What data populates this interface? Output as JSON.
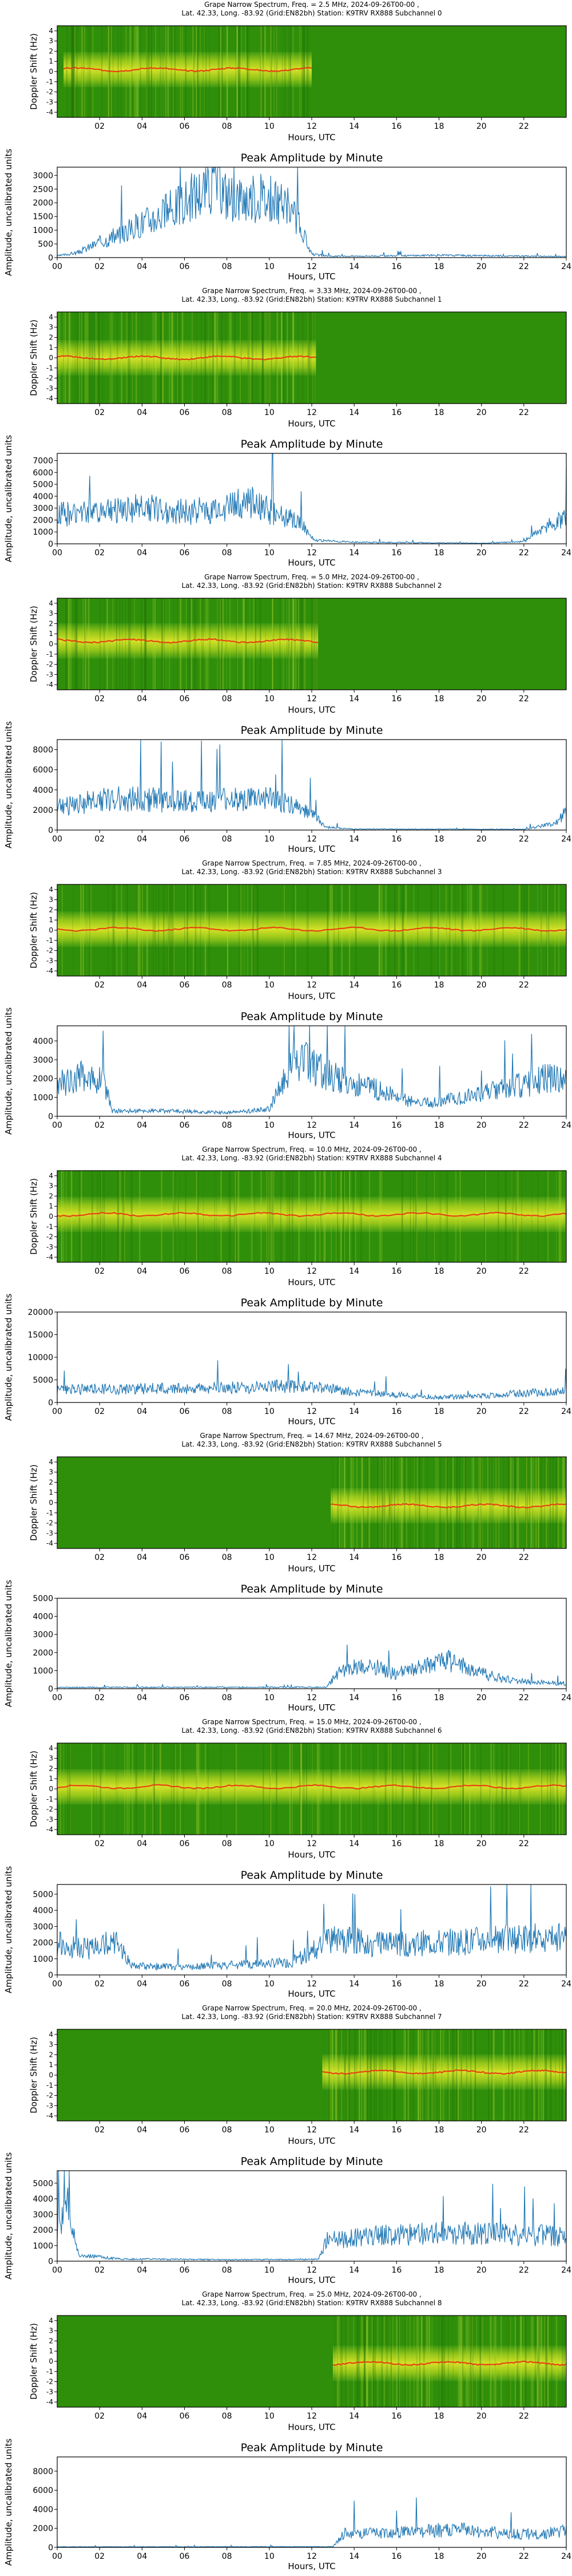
{
  "colors": {
    "spectrum_bg": "#2f8f0a",
    "spectrum_band": "#e9e92a",
    "spectrum_line": "#e8340f",
    "amp_line": "#1f77b4"
  },
  "common": {
    "doppler_ylabel": "Doppler Shift (Hz)",
    "xlabel": "Hours, UTC",
    "amp_title": "Peak Amplitude by Minute",
    "amp_ylabel": "Amplitude, uncalibrated units",
    "spectrum_yticks": [
      "4",
      "3",
      "2",
      "1",
      "0",
      "-1",
      "-2",
      "-3",
      "-4"
    ],
    "spectrum_xticks": [
      "02",
      "04",
      "06",
      "08",
      "10",
      "12",
      "14",
      "16",
      "18",
      "20",
      "22"
    ],
    "amp_xticks": [
      "00",
      "02",
      "04",
      "06",
      "08",
      "10",
      "12",
      "14",
      "16",
      "18",
      "20",
      "22",
      "24"
    ]
  },
  "chart_data": [
    {
      "type": "heatmap",
      "title_line1": "Grape Narrow Spectrum, Freq. = 2.5 MHz, 2024-09-26T00-00 ,",
      "title_line2": "Lat.  42.33, Long. -83.92 (Grid:EN82bh) Station: K9TRV RX888 Subchannel 0",
      "active_hours": [
        0.3,
        12.0
      ],
      "line_offset_hz": 0.2
    },
    {
      "type": "line",
      "ylim": [
        0,
        3300
      ],
      "yticks": [
        0,
        500,
        1000,
        1500,
        2000,
        2500,
        3000
      ],
      "ytick_labels": [
        "0",
        "500",
        "1000",
        "1500",
        "2000",
        "2500",
        "3000"
      ],
      "envelope": [
        [
          0,
          60
        ],
        [
          1,
          200
        ],
        [
          2,
          600
        ],
        [
          3,
          900
        ],
        [
          4,
          1350
        ],
        [
          5,
          1700
        ],
        [
          6,
          2150
        ],
        [
          7,
          2700
        ],
        [
          7.5,
          3050
        ],
        [
          8,
          2400
        ],
        [
          9,
          2300
        ],
        [
          10,
          2250
        ],
        [
          11,
          1900
        ],
        [
          11.5,
          1100
        ],
        [
          12,
          120
        ],
        [
          13,
          50
        ],
        [
          18,
          90
        ],
        [
          24,
          40
        ]
      ]
    },
    {
      "type": "heatmap",
      "title_line1": "Grape Narrow Spectrum, Freq. = 3.33 MHz, 2024-09-26T00-00 ,",
      "title_line2": "Lat.  42.33, Long. -83.92 (Grid:EN82bh) Station: K9TRV RX888 Subchannel 1",
      "active_hours": [
        0.0,
        12.2
      ],
      "line_offset_hz": 0.0
    },
    {
      "type": "line",
      "ylim": [
        0,
        7600
      ],
      "yticks": [
        0,
        1000,
        2000,
        3000,
        4000,
        5000,
        6000,
        7000
      ],
      "ytick_labels": [
        "0",
        "1000",
        "2000",
        "3000",
        "4000",
        "5000",
        "6000",
        "7000"
      ],
      "envelope": [
        [
          0,
          2600
        ],
        [
          2,
          2800
        ],
        [
          4,
          3200
        ],
        [
          6,
          2800
        ],
        [
          8,
          3100
        ],
        [
          9,
          3900
        ],
        [
          10,
          2900
        ],
        [
          11,
          2300
        ],
        [
          11.7,
          1300
        ],
        [
          12.2,
          300
        ],
        [
          14,
          150
        ],
        [
          20,
          50
        ],
        [
          22,
          200
        ],
        [
          23,
          1500
        ],
        [
          24,
          2200
        ]
      ]
    },
    {
      "type": "heatmap",
      "title_line1": "Grape Narrow Spectrum, Freq. = 5.0 MHz, 2024-09-26T00-00 ,",
      "title_line2": "Lat.  42.33, Long. -83.92 (Grid:EN82bh) Station: K9TRV RX888 Subchannel 2",
      "active_hours": [
        0.0,
        12.3
      ],
      "line_offset_hz": 0.3
    },
    {
      "type": "line",
      "ylim": [
        0,
        9000
      ],
      "yticks": [
        0,
        2000,
        4000,
        6000,
        8000
      ],
      "ytick_labels": [
        "0",
        "2000",
        "4000",
        "6000",
        "8000"
      ],
      "envelope": [
        [
          0,
          2400
        ],
        [
          2,
          3200
        ],
        [
          4,
          3300
        ],
        [
          6,
          3000
        ],
        [
          8,
          3100
        ],
        [
          10,
          3200
        ],
        [
          11,
          2600
        ],
        [
          12,
          1800
        ],
        [
          12.7,
          300
        ],
        [
          14,
          100
        ],
        [
          22,
          80
        ],
        [
          23.5,
          700
        ],
        [
          24,
          1900
        ]
      ]
    },
    {
      "type": "heatmap",
      "title_line1": "Grape Narrow Spectrum, Freq. = 7.85 MHz, 2024-09-26T00-00 ,",
      "title_line2": "Lat.  42.33, Long. -83.92 (Grid:EN82bh) Station: K9TRV RX888 Subchannel 3",
      "active_hours": [
        0.0,
        24.0
      ],
      "line_offset_hz": 0.1
    },
    {
      "type": "line",
      "ylim": [
        0,
        4800
      ],
      "yticks": [
        0,
        1000,
        2000,
        3000,
        4000
      ],
      "ytick_labels": [
        "0",
        "1000",
        "2000",
        "3000",
        "4000"
      ],
      "envelope": [
        [
          0,
          1800
        ],
        [
          1.5,
          2300
        ],
        [
          2.2,
          1900
        ],
        [
          2.6,
          300
        ],
        [
          5,
          300
        ],
        [
          8,
          200
        ],
        [
          10,
          400
        ],
        [
          11,
          2800
        ],
        [
          12,
          3000
        ],
        [
          13,
          2200
        ],
        [
          15,
          1500
        ],
        [
          17,
          700
        ],
        [
          19,
          1000
        ],
        [
          21,
          1500
        ],
        [
          23,
          2100
        ],
        [
          24,
          2000
        ]
      ]
    },
    {
      "type": "heatmap",
      "title_line1": "Grape Narrow Spectrum, Freq. = 10.0 MHz, 2024-09-26T00-00 ,",
      "title_line2": "Lat.  42.33, Long. -83.92 (Grid:EN82bh) Station: K9TRV RX888 Subchannel 4",
      "active_hours": [
        0.0,
        24.0
      ],
      "line_offset_hz": 0.2
    },
    {
      "type": "line",
      "ylim": [
        0,
        20000
      ],
      "yticks": [
        0,
        5000,
        10000,
        15000,
        20000
      ],
      "ytick_labels": [
        "0",
        "5000",
        "10000",
        "15000",
        "20000"
      ],
      "envelope": [
        [
          0,
          3000
        ],
        [
          4,
          3200
        ],
        [
          8,
          3400
        ],
        [
          10,
          3800
        ],
        [
          12,
          3600
        ],
        [
          14,
          2400
        ],
        [
          16,
          1800
        ],
        [
          18,
          1200
        ],
        [
          20,
          1500
        ],
        [
          22,
          2200
        ],
        [
          24,
          2600
        ]
      ]
    },
    {
      "type": "heatmap",
      "title_line1": "Grape Narrow Spectrum, Freq. = 14.67 MHz, 2024-09-26T00-00 ,",
      "title_line2": "Lat.  42.33, Long. -83.92 (Grid:EN82bh) Station: K9TRV RX888 Subchannel 5",
      "active_hours": [
        12.9,
        24.0
      ],
      "line_offset_hz": -0.3
    },
    {
      "type": "line",
      "ylim": [
        0,
        5000
      ],
      "yticks": [
        0,
        1000,
        2000,
        3000,
        4000,
        5000
      ],
      "ytick_labels": [
        "0",
        "1000",
        "2000",
        "3000",
        "4000",
        "5000"
      ],
      "envelope": [
        [
          0,
          80
        ],
        [
          12.7,
          90
        ],
        [
          13.2,
          900
        ],
        [
          14.5,
          1400
        ],
        [
          16,
          900
        ],
        [
          17,
          1200
        ],
        [
          18.5,
          1600
        ],
        [
          20,
          900
        ],
        [
          21,
          600
        ],
        [
          22,
          400
        ],
        [
          24,
          300
        ]
      ]
    },
    {
      "type": "heatmap",
      "title_line1": "Grape Narrow Spectrum, Freq. = 15.0 MHz, 2024-09-26T00-00 ,",
      "title_line2": "Lat.  42.33, Long. -83.92 (Grid:EN82bh) Station: K9TRV RX888 Subchannel 6",
      "active_hours": [
        0.0,
        24.0
      ],
      "line_offset_hz": 0.2
    },
    {
      "type": "line",
      "ylim": [
        0,
        5600
      ],
      "yticks": [
        0,
        1000,
        2000,
        3000,
        4000,
        5000
      ],
      "ytick_labels": [
        "0",
        "1000",
        "2000",
        "3000",
        "4000",
        "5000"
      ],
      "envelope": [
        [
          0,
          2000
        ],
        [
          1.5,
          1700
        ],
        [
          2.8,
          2200
        ],
        [
          3.5,
          600
        ],
        [
          6,
          500
        ],
        [
          9,
          700
        ],
        [
          11,
          800
        ],
        [
          12,
          1500
        ],
        [
          13,
          2400
        ],
        [
          15,
          2000
        ],
        [
          18,
          2100
        ],
        [
          21,
          2300
        ],
        [
          24,
          2500
        ]
      ]
    },
    {
      "type": "heatmap",
      "title_line1": "Grape Narrow Spectrum, Freq. = 20.0 MHz, 2024-09-26T00-00 ,",
      "title_line2": "Lat.  42.33, Long. -83.92 (Grid:EN82bh) Station: K9TRV RX888 Subchannel 7",
      "active_hours": [
        12.5,
        24.0
      ],
      "line_offset_hz": 0.3
    },
    {
      "type": "line",
      "ylim": [
        0,
        5800
      ],
      "yticks": [
        0,
        1000,
        2000,
        3000,
        4000,
        5000
      ],
      "ytick_labels": [
        "0",
        "1000",
        "2000",
        "3000",
        "4000",
        "5000"
      ],
      "envelope": [
        [
          0,
          2500
        ],
        [
          0.5,
          3800
        ],
        [
          1,
          400
        ],
        [
          3,
          150
        ],
        [
          8,
          100
        ],
        [
          12.3,
          120
        ],
        [
          12.7,
          1400
        ],
        [
          15,
          1700
        ],
        [
          18,
          1900
        ],
        [
          21,
          1800
        ],
        [
          24,
          1700
        ]
      ]
    },
    {
      "type": "heatmap",
      "title_line1": "Grape Narrow Spectrum, Freq. = 25.0 MHz, 2024-09-26T00-00 ,",
      "title_line2": "Lat.  42.33, Long. -83.92 (Grid:EN82bh) Station: K9TRV RX888 Subchannel 8",
      "active_hours": [
        13.0,
        24.0
      ],
      "line_offset_hz": -0.2
    },
    {
      "type": "line",
      "ylim": [
        0,
        9500
      ],
      "yticks": [
        0,
        2000,
        4000,
        6000,
        8000
      ],
      "ytick_labels": [
        "0",
        "2000",
        "4000",
        "6000",
        "8000"
      ],
      "envelope": [
        [
          0,
          60
        ],
        [
          13,
          80
        ],
        [
          13.5,
          1500
        ],
        [
          15,
          1600
        ],
        [
          17,
          1800
        ],
        [
          19,
          2000
        ],
        [
          21,
          1600
        ],
        [
          22.5,
          1400
        ],
        [
          24,
          1800
        ]
      ]
    }
  ]
}
